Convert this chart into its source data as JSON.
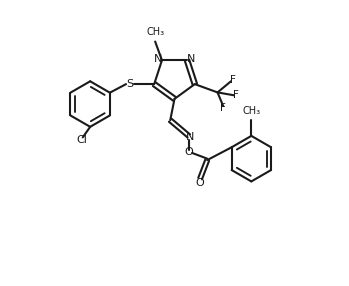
{
  "background_color": "#ffffff",
  "line_color": "#1a1a1a",
  "line_width": 1.5,
  "figsize": [
    3.49,
    2.86
  ],
  "dpi": 100,
  "xlim": [
    0,
    10
  ],
  "ylim": [
    0,
    10
  ]
}
